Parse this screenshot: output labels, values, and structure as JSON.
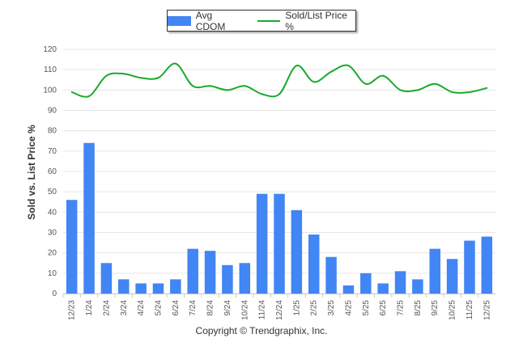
{
  "chart_data": {
    "type": "bar+line",
    "categories": [
      "12/23",
      "1/24",
      "2/24",
      "3/24",
      "4/24",
      "5/24",
      "6/24",
      "7/24",
      "8/24",
      "9/24",
      "10/24",
      "11/24",
      "12/24",
      "1/25",
      "2/25",
      "3/25",
      "4/25",
      "5/25",
      "6/25",
      "7/25",
      "8/25",
      "9/25",
      "10/25",
      "11/25",
      "12/25"
    ],
    "series": [
      {
        "name": "Avg CDOM",
        "type": "bar",
        "color": "#4285f4",
        "values": [
          46,
          74,
          15,
          7,
          5,
          5,
          7,
          22,
          21,
          14,
          15,
          49,
          49,
          41,
          29,
          18,
          4,
          10,
          5,
          11,
          7,
          22,
          17,
          26,
          28
        ]
      },
      {
        "name": "Sold/List Price %",
        "type": "line",
        "color": "#1aaa2a",
        "values": [
          99,
          97,
          107,
          108,
          106,
          106,
          113,
          102,
          102,
          100,
          102,
          98,
          98,
          112,
          104,
          109,
          112,
          103,
          107,
          100,
          100,
          103,
          99,
          99,
          101
        ]
      }
    ],
    "ylabel": "Sold vs. List Price %",
    "ylim": [
      0,
      120
    ],
    "yticks": [
      0,
      10,
      20,
      30,
      40,
      50,
      60,
      70,
      80,
      90,
      100,
      110,
      120
    ],
    "grid": true,
    "legend": "top-center"
  },
  "footer": {
    "copyright": "Copyright © Trendgraphix, Inc."
  }
}
